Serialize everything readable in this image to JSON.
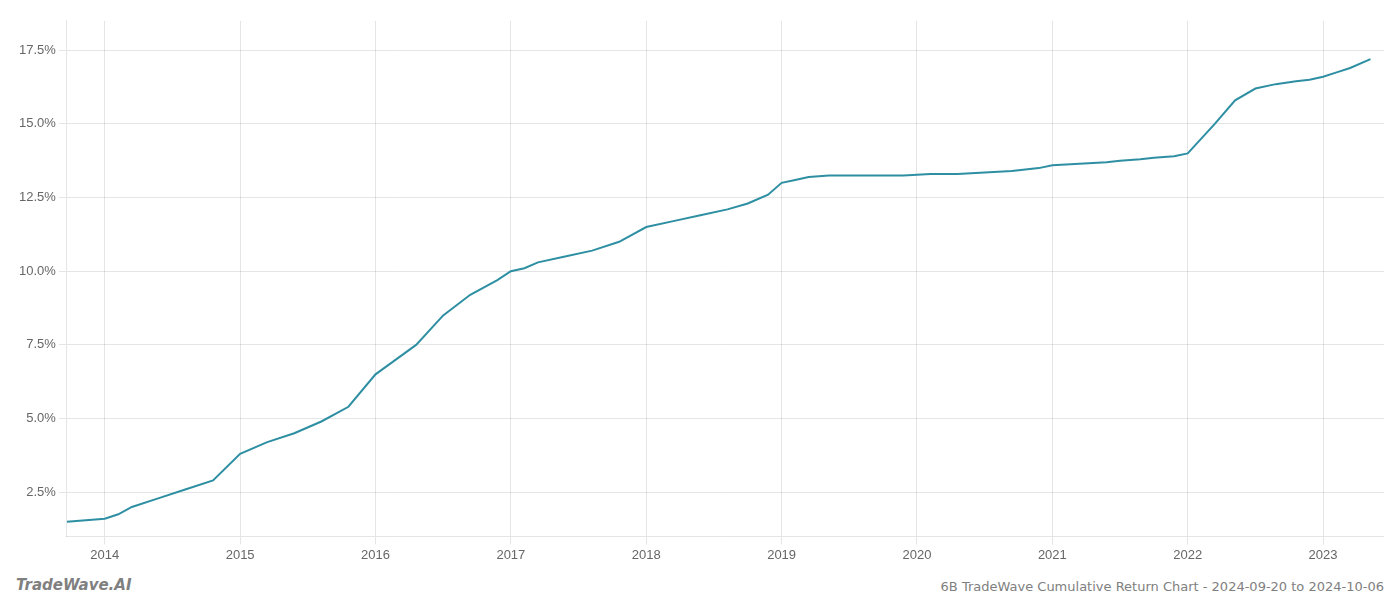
{
  "chart_data": {
    "type": "line",
    "x": [
      2013.72,
      2014.0,
      2014.1,
      2014.2,
      2014.4,
      2014.6,
      2014.8,
      2015.0,
      2015.2,
      2015.4,
      2015.6,
      2015.8,
      2016.0,
      2016.15,
      2016.3,
      2016.5,
      2016.7,
      2016.9,
      2017.0,
      2017.1,
      2017.2,
      2017.4,
      2017.6,
      2017.8,
      2018.0,
      2018.2,
      2018.4,
      2018.6,
      2018.75,
      2018.9,
      2019.0,
      2019.1,
      2019.2,
      2019.35,
      2019.5,
      2019.7,
      2019.9,
      2020.1,
      2020.3,
      2020.5,
      2020.7,
      2020.9,
      2021.0,
      2021.2,
      2021.4,
      2021.5,
      2021.65,
      2021.75,
      2021.9,
      2022.0,
      2022.1,
      2022.2,
      2022.35,
      2022.5,
      2022.65,
      2022.8,
      2022.9,
      2023.0,
      2023.1,
      2023.2,
      2023.35
    ],
    "values": [
      1.5,
      1.6,
      1.75,
      2.0,
      2.3,
      2.6,
      2.9,
      3.8,
      4.2,
      4.5,
      4.9,
      5.4,
      6.5,
      7.0,
      7.5,
      8.5,
      9.2,
      9.7,
      10.0,
      10.1,
      10.3,
      10.5,
      10.7,
      11.0,
      11.5,
      11.7,
      11.9,
      12.1,
      12.3,
      12.6,
      13.0,
      13.1,
      13.2,
      13.25,
      13.25,
      13.25,
      13.25,
      13.3,
      13.3,
      13.35,
      13.4,
      13.5,
      13.6,
      13.65,
      13.7,
      13.75,
      13.8,
      13.85,
      13.9,
      14.0,
      14.5,
      15.0,
      15.8,
      16.2,
      16.35,
      16.45,
      16.5,
      16.6,
      16.75,
      16.9,
      17.2
    ],
    "color": "#2e8fa3",
    "xlim": [
      2013.72,
      2023.45
    ],
    "xticks": [
      2014,
      2015,
      2016,
      2017,
      2018,
      2019,
      2020,
      2021,
      2022,
      2023
    ],
    "ylim": [
      1.0,
      18.5
    ],
    "yticks": [
      {
        "value": 2.5,
        "label": "2.5%"
      },
      {
        "value": 5.0,
        "label": "5.0%"
      },
      {
        "value": 7.5,
        "label": "7.5%"
      },
      {
        "value": 10.0,
        "label": "10.0%"
      },
      {
        "value": 12.5,
        "label": "12.5%"
      },
      {
        "value": 15.0,
        "label": "15.0%"
      },
      {
        "value": 17.5,
        "label": "17.5%"
      }
    ],
    "grid": true,
    "annotations": [
      "TradeWave.AI",
      "6B TradeWave Cumulative Return Chart - 2024-09-20 to 2024-10-06"
    ]
  }
}
